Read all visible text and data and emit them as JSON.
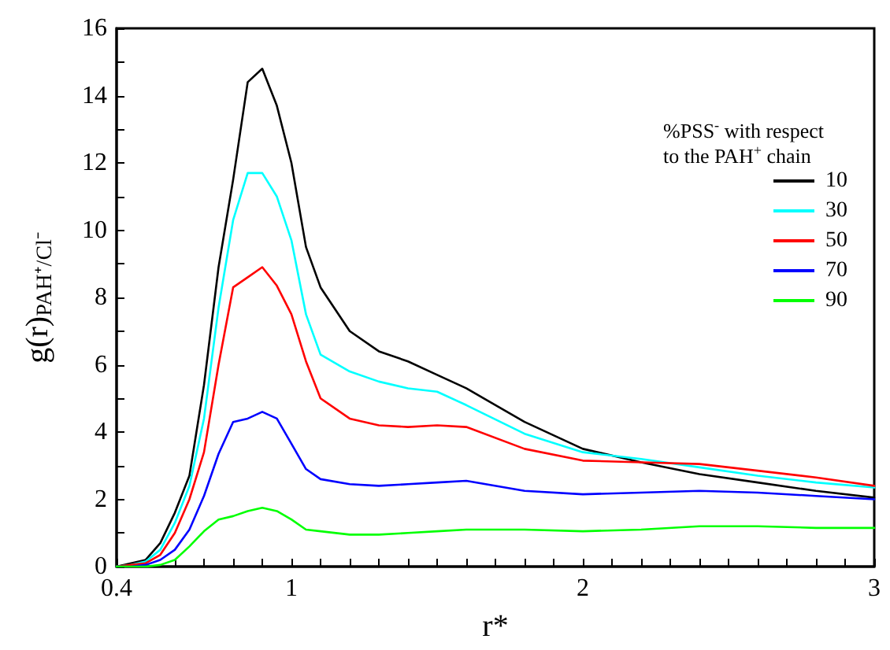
{
  "chart_data": {
    "type": "line",
    "xlabel": "r*",
    "ylabel": "g(r)$_{PAH⁺/Cl⁻}$",
    "legend_title": "%PSS$^{-}$ with respect\nto the PAH$^{+}$ chain",
    "x": [
      0.4,
      0.45,
      0.5,
      0.55,
      0.6,
      0.65,
      0.7,
      0.75,
      0.8,
      0.85,
      0.9,
      0.95,
      1.0,
      1.05,
      1.1,
      1.2,
      1.3,
      1.4,
      1.5,
      1.6,
      1.8,
      2.0,
      2.2,
      2.4,
      2.6,
      2.8,
      3.0
    ],
    "series": [
      {
        "name": "10",
        "color": "#000000",
        "values": [
          0,
          0.1,
          0.2,
          0.7,
          1.6,
          2.7,
          5.4,
          8.9,
          11.5,
          14.4,
          14.8,
          13.7,
          12.0,
          9.5,
          8.3,
          7.0,
          6.4,
          6.1,
          5.7,
          5.3,
          4.3,
          3.5,
          3.1,
          2.75,
          2.5,
          2.25,
          2.05
        ]
      },
      {
        "name": "30",
        "color": "#00ffff",
        "values": [
          0,
          0.05,
          0.15,
          0.5,
          1.3,
          2.4,
          4.4,
          7.7,
          10.3,
          11.7,
          11.7,
          11.0,
          9.7,
          7.5,
          6.3,
          5.8,
          5.5,
          5.3,
          5.2,
          4.8,
          3.95,
          3.4,
          3.2,
          2.95,
          2.7,
          2.5,
          2.35
        ]
      },
      {
        "name": "50",
        "color": "#ff0000",
        "values": [
          0,
          0.05,
          0.1,
          0.35,
          1.0,
          2.0,
          3.4,
          6.0,
          8.3,
          8.6,
          8.9,
          8.35,
          7.5,
          6.1,
          5.0,
          4.4,
          4.2,
          4.15,
          4.2,
          4.15,
          3.5,
          3.15,
          3.1,
          3.05,
          2.85,
          2.65,
          2.4
        ]
      },
      {
        "name": "70",
        "color": "#0000ff",
        "values": [
          0,
          0,
          0.05,
          0.2,
          0.5,
          1.1,
          2.1,
          3.35,
          4.3,
          4.4,
          4.6,
          4.4,
          3.65,
          2.9,
          2.6,
          2.45,
          2.4,
          2.45,
          2.5,
          2.55,
          2.25,
          2.15,
          2.2,
          2.25,
          2.2,
          2.1,
          2.0
        ]
      },
      {
        "name": "90",
        "color": "#00ff00",
        "values": [
          0,
          0,
          0,
          0.05,
          0.2,
          0.6,
          1.05,
          1.4,
          1.5,
          1.65,
          1.75,
          1.65,
          1.4,
          1.1,
          1.05,
          0.95,
          0.95,
          1.0,
          1.05,
          1.1,
          1.1,
          1.05,
          1.1,
          1.2,
          1.2,
          1.15,
          1.15
        ]
      }
    ],
    "xlim": [
      0.4,
      3
    ],
    "xticks": [
      0.4,
      {
        "value": 0.5,
        "label": null
      },
      {
        "value": 0.6,
        "label": null
      },
      {
        "value": 0.7,
        "label": null
      },
      {
        "value": 0.8,
        "label": null
      },
      {
        "value": 0.9,
        "label": null
      },
      1,
      {
        "value": 1.1,
        "label": null
      },
      {
        "value": 1.2,
        "label": null
      },
      {
        "value": 1.3,
        "label": null
      },
      {
        "value": 1.4,
        "label": null
      },
      {
        "value": 1.5,
        "label": null
      },
      {
        "value": 1.6,
        "label": null
      },
      {
        "value": 1.7,
        "label": null
      },
      {
        "value": 1.8,
        "label": null
      },
      {
        "value": 1.9,
        "label": null
      },
      2,
      {
        "value": 2.1,
        "label": null
      },
      {
        "value": 2.2,
        "label": null
      },
      {
        "value": 2.3,
        "label": null
      },
      {
        "value": 2.4,
        "label": null
      },
      {
        "value": 2.5,
        "label": null
      },
      {
        "value": 2.6,
        "label": null
      },
      {
        "value": 2.7,
        "label": null
      },
      {
        "value": 2.8,
        "label": null
      },
      {
        "value": 2.9,
        "label": null
      },
      3
    ],
    "ylim": [
      0,
      16
    ],
    "yticks": [
      0,
      {
        "value": 1,
        "label": null
      },
      2,
      {
        "value": 3,
        "label": null
      },
      4,
      {
        "value": 5,
        "label": null
      },
      6,
      {
        "value": 7,
        "label": null
      },
      8,
      {
        "value": 9,
        "label": null
      },
      10,
      {
        "value": 11,
        "label": null
      },
      12,
      {
        "value": 13,
        "label": null
      },
      14,
      {
        "value": 15,
        "label": null
      },
      16
    ],
    "grid": false,
    "legend": "top right",
    "marker": "none",
    "line_style": "solid"
  }
}
